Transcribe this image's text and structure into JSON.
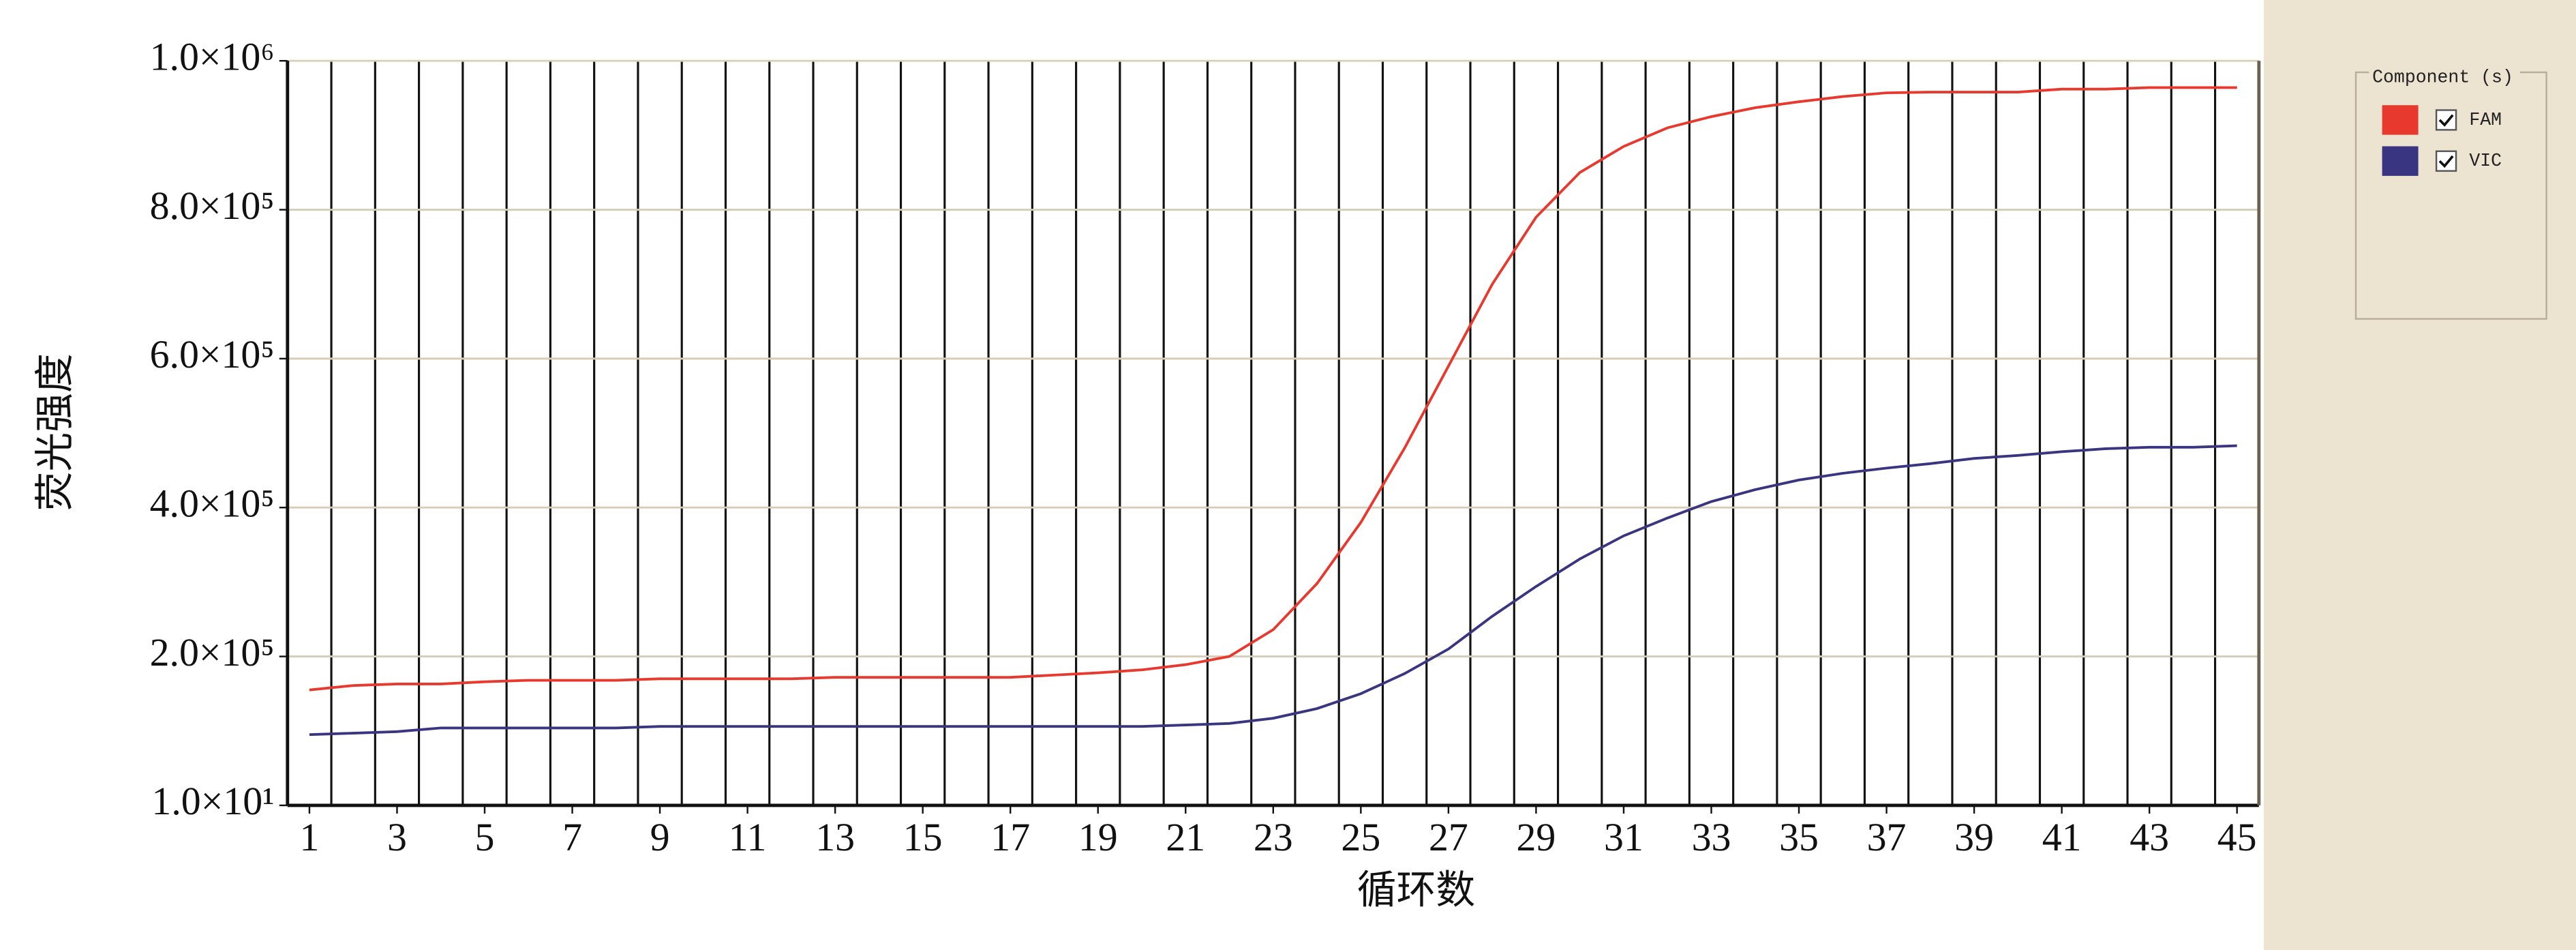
{
  "chart_data": {
    "type": "line",
    "y_label": "荧光强度",
    "x_label": "循环数",
    "legend_title": "Component (s)",
    "legend_position": "right",
    "x": [
      1,
      2,
      3,
      4,
      5,
      6,
      7,
      8,
      9,
      10,
      11,
      12,
      13,
      14,
      15,
      16,
      17,
      18,
      19,
      20,
      21,
      22,
      23,
      24,
      25,
      26,
      27,
      28,
      29,
      30,
      31,
      32,
      33,
      34,
      35,
      36,
      37,
      38,
      39,
      40,
      41,
      42,
      43,
      44,
      45
    ],
    "xlim": [
      0.5,
      45.5
    ],
    "xticks": [
      1,
      3,
      5,
      7,
      9,
      11,
      13,
      15,
      17,
      19,
      21,
      23,
      25,
      27,
      29,
      31,
      33,
      35,
      37,
      39,
      41,
      43,
      45
    ],
    "ylim": [
      10,
      1000000
    ],
    "yticks": [
      {
        "value": 10,
        "label": "1.0×10¹"
      },
      {
        "value": 200000,
        "label": "2.0×10⁵"
      },
      {
        "value": 400000,
        "label": "4.0×10⁵"
      },
      {
        "value": 600000,
        "label": "6.0×10⁵"
      },
      {
        "value": 800000,
        "label": "8.0×10⁵"
      },
      {
        "value": 1000000,
        "label": "1.0×10⁶"
      }
    ],
    "grid": true,
    "series": [
      {
        "name": "FAM",
        "color": "#e8392f",
        "values": [
          155000,
          161000,
          163000,
          163000,
          166000,
          168000,
          168000,
          168000,
          170000,
          170000,
          170000,
          170000,
          172000,
          172000,
          172000,
          172000,
          172000,
          175000,
          178000,
          182000,
          189000,
          200000,
          236000,
          298000,
          380000,
          480000,
          590000,
          700000,
          790000,
          850000,
          885000,
          910000,
          925000,
          937000,
          945000,
          952000,
          957000,
          958000,
          958000,
          958000,
          962000,
          962000,
          964000,
          964000,
          964000
        ]
      },
      {
        "name": "VIC",
        "color": "#3a3580",
        "values": [
          95000,
          97000,
          99000,
          104000,
          104000,
          104000,
          104000,
          104000,
          106000,
          106000,
          106000,
          106000,
          106000,
          106000,
          106000,
          106000,
          106000,
          106000,
          106000,
          106000,
          108000,
          110000,
          117000,
          130000,
          150000,
          177000,
          210000,
          254000,
          294000,
          331000,
          362000,
          386000,
          408000,
          424000,
          437000,
          446000,
          453000,
          459000,
          466000,
          470000,
          475000,
          479000,
          481000,
          481000,
          483000
        ]
      }
    ]
  }
}
